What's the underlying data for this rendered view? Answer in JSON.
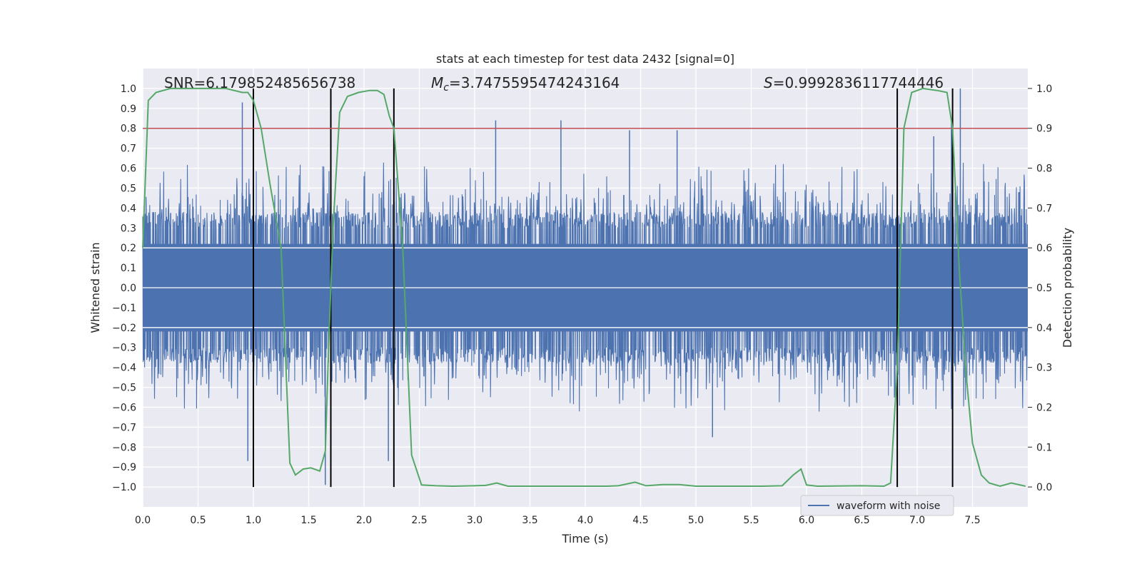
{
  "chart_data": {
    "type": "line",
    "title": "stats at each timestep for test data 2432 [signal=0]",
    "xlabel": "Time (s)",
    "ylabel": "Whitened strain",
    "ylabel_right": "Detection probability",
    "xlim": [
      0.0,
      8.0
    ],
    "ylim": [
      -1.1,
      1.1
    ],
    "ylim_right": [
      -0.05,
      1.05
    ],
    "x_ticks": [
      0.0,
      0.5,
      1.0,
      1.5,
      2.0,
      2.5,
      3.0,
      3.5,
      4.0,
      4.5,
      5.0,
      5.5,
      6.0,
      6.5,
      7.0,
      7.5
    ],
    "x_tick_labels": [
      "0.0",
      "0.5",
      "1.0",
      "1.5",
      "2.0",
      "2.5",
      "3.0",
      "3.5",
      "4.0",
      "4.5",
      "5.0",
      "5.5",
      "6.0",
      "6.5",
      "7.0",
      "7.5"
    ],
    "y_ticks": [
      -1.0,
      -0.9,
      -0.8,
      -0.7,
      -0.6,
      -0.5,
      -0.4,
      -0.3,
      -0.2,
      -0.1,
      0.0,
      0.1,
      0.2,
      0.3,
      0.4,
      0.5,
      0.6,
      0.7,
      0.8,
      0.9,
      1.0
    ],
    "y_tick_labels": [
      "−1.0",
      "−0.9",
      "−0.8",
      "−0.7",
      "−0.6",
      "−0.5",
      "−0.4",
      "−0.3",
      "−0.2",
      "−0.1",
      "0.0",
      "0.1",
      "0.2",
      "0.3",
      "0.4",
      "0.5",
      "0.6",
      "0.7",
      "0.8",
      "0.9",
      "1.0"
    ],
    "y_right_ticks": [
      0.0,
      0.1,
      0.2,
      0.3,
      0.4,
      0.5,
      0.6,
      0.7,
      0.8,
      0.9,
      1.0
    ],
    "y_right_tick_labels": [
      "0.0",
      "0.1",
      "0.2",
      "0.3",
      "0.4",
      "0.5",
      "0.6",
      "0.7",
      "0.8",
      "0.9",
      "1.0"
    ],
    "annotations": {
      "snr": "SNR=6.179852485656738",
      "mc_symbol": "M",
      "mc_sub": "c",
      "mc_value": "=3.7475595474243164",
      "s_symbol": "S",
      "s_value": "=0.9992836117744446"
    },
    "threshold": {
      "value": 0.9,
      "axis": "right",
      "color": "#c44e52"
    },
    "vertical_markers": [
      1.0,
      1.7,
      2.27,
      6.82,
      7.32
    ],
    "series": [
      {
        "name": "waveform with noise",
        "color": "#4c72b0",
        "envelope": {
          "base_amplitude": 0.3,
          "typical_peak": 0.55,
          "spikes": [
            {
              "x": 0.9,
              "y": 0.93
            },
            {
              "x": 0.95,
              "y": -0.87
            },
            {
              "x": 1.65,
              "y": -0.99
            },
            {
              "x": 2.22,
              "y": -0.87
            },
            {
              "x": 3.19,
              "y": 0.84
            },
            {
              "x": 3.78,
              "y": 0.84
            },
            {
              "x": 4.4,
              "y": 0.79
            },
            {
              "x": 4.83,
              "y": 0.79
            },
            {
              "x": 5.15,
              "y": -0.75
            },
            {
              "x": 7.31,
              "y": 0.83
            },
            {
              "x": 7.39,
              "y": 1.0
            },
            {
              "x": 7.15,
              "y": 0.76
            }
          ]
        }
      },
      {
        "name": "detection probability",
        "color": "#55a868",
        "axis": "right",
        "x": [
          0.0,
          0.05,
          0.12,
          0.25,
          0.5,
          0.75,
          0.9,
          0.95,
          1.0,
          1.07,
          1.15,
          1.25,
          1.33,
          1.38,
          1.45,
          1.52,
          1.6,
          1.65,
          1.68,
          1.72,
          1.78,
          1.85,
          1.95,
          2.05,
          2.12,
          2.18,
          2.23,
          2.27,
          2.35,
          2.43,
          2.52,
          2.65,
          2.8,
          3.0,
          3.1,
          3.2,
          3.3,
          3.5,
          3.8,
          4.0,
          4.2,
          4.3,
          4.45,
          4.55,
          4.7,
          4.85,
          5.0,
          5.3,
          5.6,
          5.78,
          5.88,
          5.95,
          6.0,
          6.1,
          6.5,
          6.7,
          6.76,
          6.82,
          6.88,
          6.95,
          7.05,
          7.18,
          7.27,
          7.32,
          7.38,
          7.44,
          7.5,
          7.58,
          7.65,
          7.75,
          7.85,
          7.98
        ],
        "y": [
          0.6,
          0.97,
          0.99,
          1.0,
          1.0,
          1.0,
          0.99,
          0.99,
          0.97,
          0.9,
          0.76,
          0.6,
          0.06,
          0.03,
          0.045,
          0.048,
          0.04,
          0.09,
          0.35,
          0.65,
          0.94,
          0.98,
          0.99,
          0.995,
          0.995,
          0.985,
          0.93,
          0.9,
          0.6,
          0.08,
          0.005,
          0.003,
          0.002,
          0.003,
          0.004,
          0.01,
          0.002,
          0.002,
          0.002,
          0.002,
          0.002,
          0.003,
          0.012,
          0.003,
          0.006,
          0.006,
          0.002,
          0.002,
          0.002,
          0.003,
          0.03,
          0.045,
          0.005,
          0.002,
          0.003,
          0.002,
          0.01,
          0.3,
          0.9,
          0.99,
          1.0,
          0.995,
          0.99,
          0.9,
          0.55,
          0.29,
          0.11,
          0.03,
          0.01,
          0.002,
          0.01,
          0.002
        ]
      }
    ],
    "legend": {
      "position": "bottom-right",
      "entries": [
        "waveform with noise"
      ]
    }
  }
}
